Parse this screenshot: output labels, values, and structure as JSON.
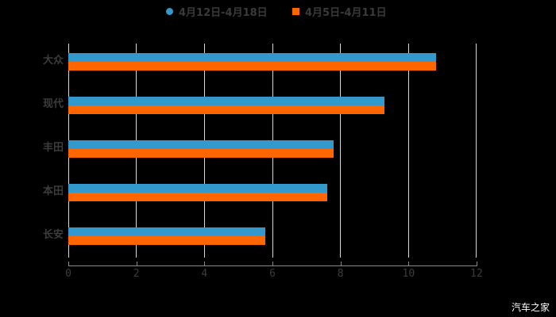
{
  "chart_data": {
    "type": "bar",
    "orientation": "horizontal",
    "title": "",
    "categories": [
      "大众",
      "现代",
      "丰田",
      "本田",
      "长安"
    ],
    "series": [
      {
        "name": "4月12日-4月18日",
        "color": "#3399cc",
        "values": [
          10.8,
          9.3,
          7.8,
          7.6,
          5.8
        ]
      },
      {
        "name": "4月5日-4月11日",
        "color": "#ff6600",
        "values": [
          10.8,
          9.3,
          7.8,
          7.6,
          5.8
        ]
      }
    ],
    "xlabel": "",
    "ylabel": "",
    "xlim": [
      0,
      12
    ],
    "x_ticks": [
      "0",
      "2",
      "4",
      "6",
      "8",
      "10",
      "12"
    ],
    "grid": true,
    "legend_position": "top"
  },
  "legend": {
    "items": [
      {
        "label": "4月12日-4月18日",
        "color": "#3399cc",
        "shape": "circle"
      },
      {
        "label": "4月5日-4月11日",
        "color": "#ff6600",
        "shape": "square"
      }
    ]
  },
  "watermark": "汽车之家"
}
